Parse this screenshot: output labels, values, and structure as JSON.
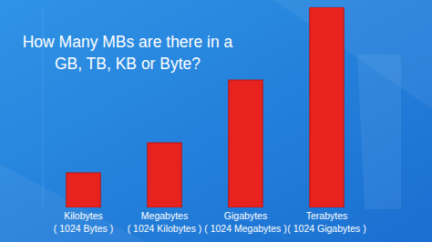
{
  "chart_data": {
    "type": "bar",
    "title": "How Many MBs are there in a\nGB, TB, KB or Byte?",
    "categories": [
      "Kilobytes\n( 1024 Bytes )",
      "Megabytes\n( 1024 Kilobytes )",
      "Gigabytes\n( 1024 Megabytes )",
      "Terabytes\n( 1024 Gigabytes )"
    ],
    "values": [
      38,
      71,
      140,
      220
    ],
    "color": "#e8231f",
    "ylim": [
      0,
      220
    ],
    "tick_labels": false,
    "grid": false
  }
}
